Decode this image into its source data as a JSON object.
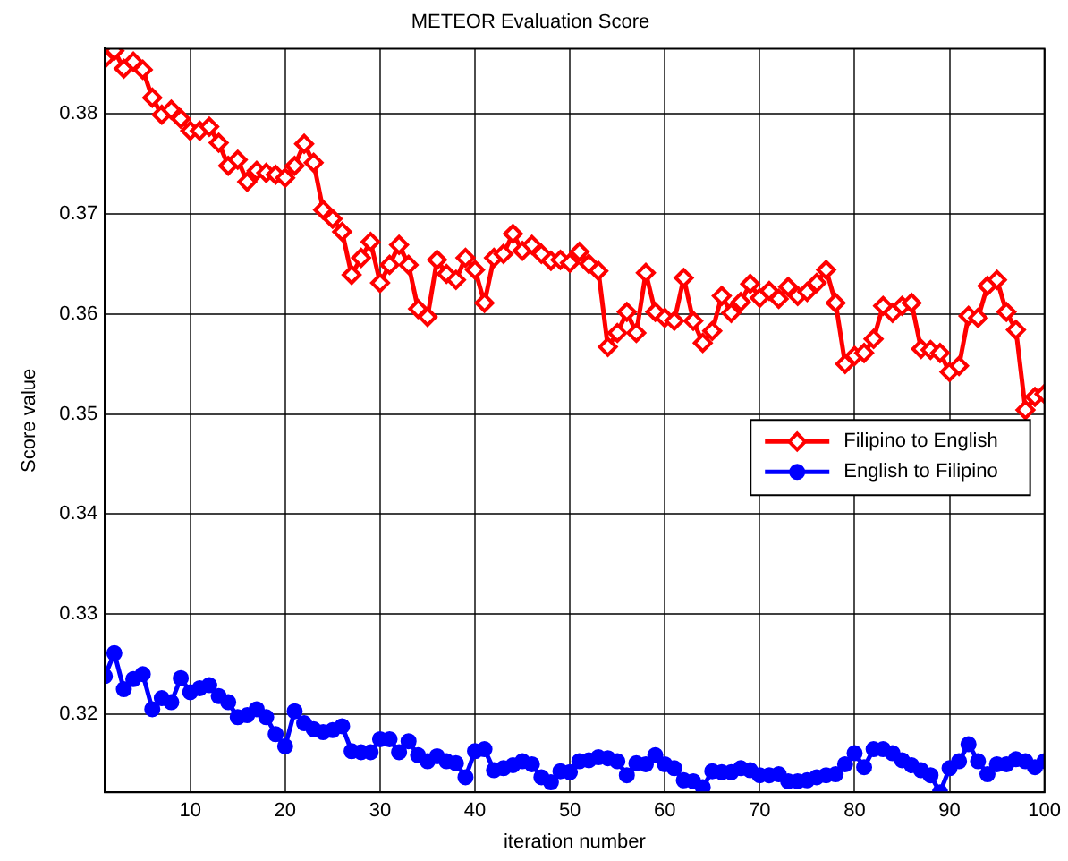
{
  "chart_data": {
    "type": "line",
    "title": "METEOR Evaluation Score",
    "xlabel": "iteration number",
    "ylabel": "Score value",
    "x": [
      1,
      2,
      3,
      4,
      5,
      6,
      7,
      8,
      9,
      10,
      11,
      12,
      13,
      14,
      15,
      16,
      17,
      18,
      19,
      20,
      21,
      22,
      23,
      24,
      25,
      26,
      27,
      28,
      29,
      30,
      31,
      32,
      33,
      34,
      35,
      36,
      37,
      38,
      39,
      40,
      41,
      42,
      43,
      44,
      45,
      46,
      47,
      48,
      49,
      50,
      51,
      52,
      53,
      54,
      55,
      56,
      57,
      58,
      59,
      60,
      61,
      62,
      63,
      64,
      65,
      66,
      67,
      68,
      69,
      70,
      71,
      72,
      73,
      74,
      75,
      76,
      77,
      78,
      79,
      80,
      81,
      82,
      83,
      84,
      85,
      86,
      87,
      88,
      89,
      90,
      91,
      92,
      93,
      94,
      95,
      96,
      97,
      98,
      99,
      100
    ],
    "series": [
      {
        "name": "Filipino to English",
        "color": "#ff0000",
        "marker": "diamond",
        "values": [
          0.3855,
          0.3863,
          0.3845,
          0.3852,
          0.3844,
          0.3816,
          0.3799,
          0.3804,
          0.3795,
          0.3783,
          0.3783,
          0.3787,
          0.3771,
          0.3748,
          0.3754,
          0.3732,
          0.3743,
          0.3741,
          0.3739,
          0.3736,
          0.3748,
          0.377,
          0.3751,
          0.3704,
          0.3695,
          0.3682,
          0.3639,
          0.3656,
          0.3672,
          0.3631,
          0.3649,
          0.3669,
          0.3649,
          0.3605,
          0.3597,
          0.3654,
          0.364,
          0.3634,
          0.3656,
          0.3644,
          0.3611,
          0.3656,
          0.366,
          0.368,
          0.3663,
          0.3669,
          0.366,
          0.3653,
          0.3654,
          0.3651,
          0.3662,
          0.365,
          0.3643,
          0.3567,
          0.3581,
          0.3602,
          0.3581,
          0.3641,
          0.3602,
          0.3596,
          0.3593,
          0.3636,
          0.3593,
          0.3571,
          0.3583,
          0.3618,
          0.3601,
          0.3612,
          0.363,
          0.3616,
          0.3623,
          0.3615,
          0.3627,
          0.3618,
          0.3622,
          0.3631,
          0.3644,
          0.3611,
          0.355,
          0.3558,
          0.3561,
          0.3575,
          0.3608,
          0.3601,
          0.3608,
          0.3611,
          0.3565,
          0.3564,
          0.3561,
          0.3542,
          0.3548,
          0.3598,
          0.3596,
          0.3628,
          0.3634,
          0.3602,
          0.3584,
          0.3504,
          0.3517,
          0.352
        ]
      },
      {
        "name": "English to Filipino",
        "color": "#0000ff",
        "marker": "circle",
        "values": [
          0.3238,
          0.3261,
          0.3225,
          0.3235,
          0.324,
          0.3205,
          0.3216,
          0.3212,
          0.3236,
          0.3222,
          0.3226,
          0.3229,
          0.3218,
          0.3212,
          0.3197,
          0.3199,
          0.3205,
          0.3197,
          0.318,
          0.3168,
          0.3203,
          0.3191,
          0.3185,
          0.3182,
          0.3184,
          0.3188,
          0.3163,
          0.3162,
          0.3162,
          0.3175,
          0.3175,
          0.3162,
          0.3173,
          0.3159,
          0.3153,
          0.3158,
          0.3153,
          0.3151,
          0.3137,
          0.3163,
          0.3165,
          0.3144,
          0.3146,
          0.3149,
          0.3153,
          0.315,
          0.3137,
          0.3132,
          0.3143,
          0.3142,
          0.3153,
          0.3154,
          0.3157,
          0.3156,
          0.3153,
          0.3139,
          0.3151,
          0.315,
          0.3159,
          0.315,
          0.3146,
          0.3134,
          0.3133,
          0.3127,
          0.3143,
          0.3142,
          0.3142,
          0.3146,
          0.3144,
          0.3139,
          0.3139,
          0.314,
          0.3133,
          0.3133,
          0.3134,
          0.3137,
          0.3139,
          0.314,
          0.315,
          0.3161,
          0.3147,
          0.3165,
          0.3165,
          0.3161,
          0.3154,
          0.3149,
          0.3144,
          0.3139,
          0.3122,
          0.3146,
          0.3153,
          0.317,
          0.3153,
          0.314,
          0.315,
          0.315,
          0.3155,
          0.3153,
          0.3147,
          0.3153
        ]
      }
    ],
    "xlim": [
      1,
      100
    ],
    "xticks": [
      10,
      20,
      30,
      40,
      50,
      60,
      70,
      80,
      90,
      100
    ],
    "ylim": [
      0.3122,
      0.3865
    ],
    "yticks": [
      {
        "value": 0.32,
        "label": "0.32"
      },
      {
        "value": 0.33,
        "label": "0.33"
      },
      {
        "value": 0.34,
        "label": "0.34"
      },
      {
        "value": 0.35,
        "label": "0.35"
      },
      {
        "value": 0.36,
        "label": "0.36"
      },
      {
        "value": 0.37,
        "label": "0.37"
      },
      {
        "value": 0.38,
        "label": "0.38"
      }
    ],
    "grid": true,
    "legend": "center right",
    "line_style": "solid"
  }
}
